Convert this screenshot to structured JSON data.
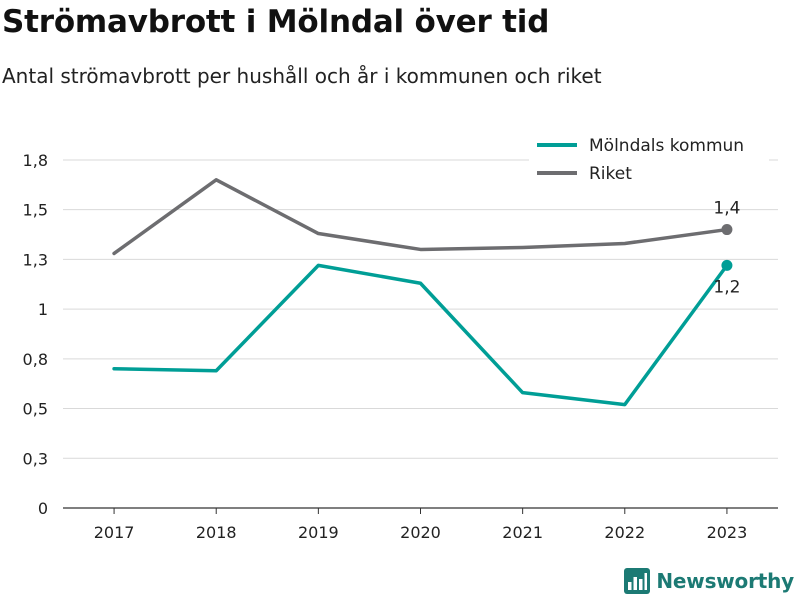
{
  "title": "Strömavbrott i Mölndal över tid",
  "subtitle": "Antal strömavbrott per hushåll och år i kommunen och riket",
  "brand": {
    "name": "Newsworthy",
    "icon": "newsworthy-logo-icon"
  },
  "colors": {
    "molndal": "#009e96",
    "riket": "#6d6d70",
    "grid": "#d9d9d9",
    "axis": "#333333",
    "brand": "#1c7a74"
  },
  "chart_data": {
    "type": "line",
    "categories": [
      "2017",
      "2018",
      "2019",
      "2020",
      "2021",
      "2022",
      "2023"
    ],
    "series": [
      {
        "name": "Mölndals kommun",
        "color": "#009e96",
        "values": [
          0.7,
          0.69,
          1.22,
          1.13,
          0.58,
          0.52,
          1.22
        ],
        "end_label": "1,2"
      },
      {
        "name": "Riket",
        "color": "#6d6d70",
        "values": [
          1.28,
          1.65,
          1.38,
          1.3,
          1.31,
          1.33,
          1.4
        ],
        "end_label": "1,4"
      }
    ],
    "ylim": [
      0,
      1.8
    ],
    "yticks": [
      {
        "value": 0,
        "label": "0"
      },
      {
        "value": 0.25,
        "label": "0,3"
      },
      {
        "value": 0.5,
        "label": "0,5"
      },
      {
        "value": 0.75,
        "label": "0,8"
      },
      {
        "value": 1.0,
        "label": "1"
      },
      {
        "value": 1.25,
        "label": "1,3"
      },
      {
        "value": 1.5,
        "label": "1,5"
      },
      {
        "value": 1.75,
        "label": "1,8"
      }
    ],
    "grid": true,
    "legend": "top-right",
    "xlabel": "",
    "ylabel": ""
  }
}
